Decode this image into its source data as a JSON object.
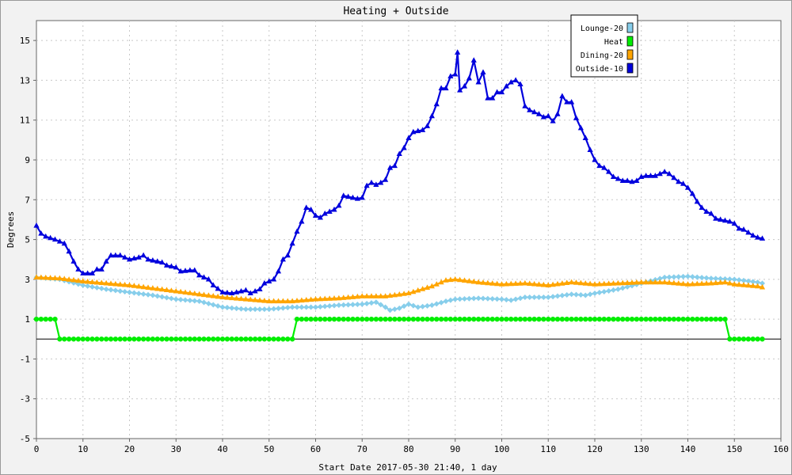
{
  "chart_data": {
    "type": "line",
    "title": "Heating + Outside",
    "xlabel": "Start Date 2017-05-30 21:40, 1 day",
    "ylabel": "Degrees",
    "xlim": [
      0,
      160
    ],
    "ylim": [
      -5,
      16
    ],
    "xticks": [
      0,
      10,
      20,
      30,
      40,
      50,
      60,
      70,
      80,
      90,
      100,
      110,
      120,
      130,
      140,
      150,
      160
    ],
    "yticks": [
      -5,
      -3,
      -1,
      1,
      3,
      5,
      7,
      9,
      11,
      13,
      15
    ],
    "grid": true,
    "legend_position": "top-right",
    "series": [
      {
        "name": "Lounge-20",
        "color": "#87ceeb",
        "marker": "diamond",
        "points": [
          [
            0,
            3.1
          ],
          [
            5,
            3.0
          ],
          [
            10,
            2.7
          ],
          [
            15,
            2.5
          ],
          [
            20,
            2.35
          ],
          [
            25,
            2.2
          ],
          [
            30,
            2.0
          ],
          [
            35,
            1.9
          ],
          [
            40,
            1.6
          ],
          [
            45,
            1.5
          ],
          [
            50,
            1.5
          ],
          [
            55,
            1.6
          ],
          [
            60,
            1.6
          ],
          [
            65,
            1.7
          ],
          [
            70,
            1.75
          ],
          [
            73,
            1.85
          ],
          [
            75,
            1.6
          ],
          [
            76,
            1.45
          ],
          [
            78,
            1.55
          ],
          [
            80,
            1.75
          ],
          [
            82,
            1.6
          ],
          [
            85,
            1.7
          ],
          [
            88,
            1.9
          ],
          [
            90,
            2.0
          ],
          [
            95,
            2.05
          ],
          [
            100,
            2.0
          ],
          [
            102,
            1.95
          ],
          [
            105,
            2.1
          ],
          [
            110,
            2.1
          ],
          [
            115,
            2.25
          ],
          [
            118,
            2.2
          ],
          [
            120,
            2.3
          ],
          [
            125,
            2.5
          ],
          [
            130,
            2.8
          ],
          [
            135,
            3.1
          ],
          [
            140,
            3.15
          ],
          [
            145,
            3.05
          ],
          [
            150,
            3.0
          ],
          [
            155,
            2.85
          ],
          [
            156,
            2.8
          ]
        ]
      },
      {
        "name": "Heat",
        "color": "#00ee00",
        "marker": "circle",
        "points": [
          [
            0,
            1
          ],
          [
            4,
            1
          ],
          [
            5,
            0
          ],
          [
            55,
            0
          ],
          [
            56,
            1
          ],
          [
            148,
            1
          ],
          [
            149,
            0
          ],
          [
            156,
            0
          ]
        ]
      },
      {
        "name": "Dining-20",
        "color": "#ffa500",
        "marker": "triangle",
        "points": [
          [
            0,
            3.1
          ],
          [
            5,
            3.05
          ],
          [
            10,
            2.9
          ],
          [
            15,
            2.8
          ],
          [
            20,
            2.7
          ],
          [
            25,
            2.55
          ],
          [
            30,
            2.4
          ],
          [
            35,
            2.25
          ],
          [
            40,
            2.1
          ],
          [
            45,
            2.0
          ],
          [
            50,
            1.9
          ],
          [
            55,
            1.9
          ],
          [
            60,
            2.0
          ],
          [
            65,
            2.05
          ],
          [
            70,
            2.15
          ],
          [
            75,
            2.15
          ],
          [
            80,
            2.3
          ],
          [
            85,
            2.65
          ],
          [
            88,
            2.95
          ],
          [
            90,
            3.0
          ],
          [
            95,
            2.85
          ],
          [
            100,
            2.75
          ],
          [
            105,
            2.8
          ],
          [
            110,
            2.7
          ],
          [
            115,
            2.85
          ],
          [
            120,
            2.75
          ],
          [
            125,
            2.8
          ],
          [
            130,
            2.85
          ],
          [
            135,
            2.85
          ],
          [
            140,
            2.75
          ],
          [
            145,
            2.8
          ],
          [
            148,
            2.85
          ],
          [
            150,
            2.75
          ],
          [
            155,
            2.65
          ],
          [
            156,
            2.6
          ]
        ]
      },
      {
        "name": "Outside-10",
        "color": "#0000dd",
        "marker": "triangle",
        "points": [
          [
            0,
            5.7
          ],
          [
            1,
            5.3
          ],
          [
            2,
            5.15
          ],
          [
            4,
            5.0
          ],
          [
            6,
            4.8
          ],
          [
            7,
            4.4
          ],
          [
            8,
            3.9
          ],
          [
            9,
            3.5
          ],
          [
            10,
            3.3
          ],
          [
            12,
            3.3
          ],
          [
            13,
            3.5
          ],
          [
            14,
            3.5
          ],
          [
            15,
            3.9
          ],
          [
            16,
            4.2
          ],
          [
            18,
            4.2
          ],
          [
            20,
            4.0
          ],
          [
            22,
            4.1
          ],
          [
            23,
            4.2
          ],
          [
            24,
            4.0
          ],
          [
            27,
            3.85
          ],
          [
            28,
            3.7
          ],
          [
            30,
            3.6
          ],
          [
            31,
            3.4
          ],
          [
            33,
            3.45
          ],
          [
            34,
            3.45
          ],
          [
            35,
            3.2
          ],
          [
            37,
            3.0
          ],
          [
            38,
            2.7
          ],
          [
            40,
            2.35
          ],
          [
            42,
            2.3
          ],
          [
            43,
            2.35
          ],
          [
            45,
            2.45
          ],
          [
            46,
            2.3
          ],
          [
            48,
            2.5
          ],
          [
            49,
            2.8
          ],
          [
            50,
            2.9
          ],
          [
            51,
            3.0
          ],
          [
            52,
            3.4
          ],
          [
            53,
            4.0
          ],
          [
            54,
            4.2
          ],
          [
            55,
            4.8
          ],
          [
            56,
            5.4
          ],
          [
            57,
            5.9
          ],
          [
            58,
            6.6
          ],
          [
            59,
            6.5
          ],
          [
            60,
            6.2
          ],
          [
            61,
            6.1
          ],
          [
            62,
            6.3
          ],
          [
            64,
            6.5
          ],
          [
            65,
            6.7
          ],
          [
            66,
            7.2
          ],
          [
            68,
            7.1
          ],
          [
            69,
            7.05
          ],
          [
            70,
            7.1
          ],
          [
            71,
            7.7
          ],
          [
            72,
            7.85
          ],
          [
            73,
            7.75
          ],
          [
            74,
            7.85
          ],
          [
            75,
            8.0
          ],
          [
            76,
            8.6
          ],
          [
            77,
            8.7
          ],
          [
            78,
            9.3
          ],
          [
            79,
            9.6
          ],
          [
            80,
            10.1
          ],
          [
            81,
            10.4
          ],
          [
            83,
            10.5
          ],
          [
            84,
            10.7
          ],
          [
            85,
            11.2
          ],
          [
            86,
            11.8
          ],
          [
            87,
            12.6
          ],
          [
            88,
            12.6
          ],
          [
            89,
            13.2
          ],
          [
            90,
            13.3
          ],
          [
            90.5,
            14.4
          ],
          [
            91,
            12.5
          ],
          [
            92,
            12.7
          ],
          [
            93,
            13.1
          ],
          [
            94,
            14.0
          ],
          [
            95,
            12.9
          ],
          [
            96,
            13.4
          ],
          [
            97,
            12.1
          ],
          [
            98,
            12.1
          ],
          [
            99,
            12.4
          ],
          [
            100,
            12.4
          ],
          [
            101,
            12.7
          ],
          [
            102,
            12.9
          ],
          [
            103,
            13.0
          ],
          [
            104,
            12.8
          ],
          [
            105,
            11.7
          ],
          [
            106,
            11.5
          ],
          [
            107,
            11.4
          ],
          [
            108,
            11.3
          ],
          [
            109,
            11.15
          ],
          [
            110,
            11.2
          ],
          [
            111,
            10.95
          ],
          [
            112,
            11.3
          ],
          [
            113,
            12.2
          ],
          [
            114,
            11.9
          ],
          [
            115,
            11.9
          ],
          [
            116,
            11.1
          ],
          [
            117,
            10.6
          ],
          [
            118,
            10.1
          ],
          [
            119,
            9.5
          ],
          [
            120,
            9.0
          ],
          [
            121,
            8.7
          ],
          [
            122,
            8.6
          ],
          [
            123,
            8.4
          ],
          [
            124,
            8.15
          ],
          [
            125,
            8.05
          ],
          [
            126,
            7.95
          ],
          [
            127,
            7.95
          ],
          [
            128,
            7.9
          ],
          [
            129,
            7.95
          ],
          [
            130,
            8.15
          ],
          [
            131,
            8.2
          ],
          [
            133,
            8.2
          ],
          [
            134,
            8.3
          ],
          [
            135,
            8.4
          ],
          [
            136,
            8.3
          ],
          [
            137,
            8.1
          ],
          [
            138,
            7.9
          ],
          [
            139,
            7.8
          ],
          [
            140,
            7.6
          ],
          [
            141,
            7.3
          ],
          [
            142,
            6.9
          ],
          [
            143,
            6.6
          ],
          [
            144,
            6.4
          ],
          [
            145,
            6.3
          ],
          [
            146,
            6.05
          ],
          [
            147,
            6.0
          ],
          [
            148,
            5.95
          ],
          [
            149,
            5.9
          ],
          [
            150,
            5.8
          ],
          [
            151,
            5.55
          ],
          [
            152,
            5.5
          ],
          [
            153,
            5.35
          ],
          [
            154,
            5.2
          ],
          [
            155,
            5.1
          ],
          [
            156,
            5.05
          ]
        ]
      }
    ]
  }
}
